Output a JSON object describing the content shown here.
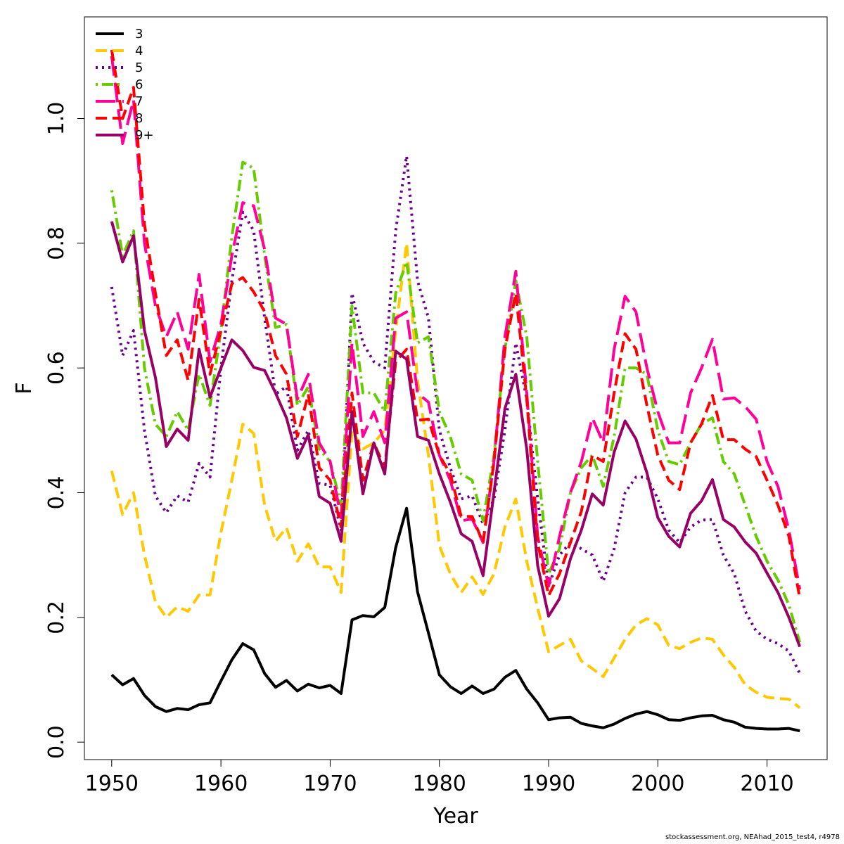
{
  "chart_data": {
    "type": "line",
    "title": "",
    "xlabel": "Year",
    "ylabel": "F",
    "xlim": [
      1947.5,
      2015.5
    ],
    "ylim": [
      -0.028,
      1.163
    ],
    "x_ticks": [
      1950,
      1960,
      1970,
      1980,
      1990,
      2000,
      2010
    ],
    "y_ticks": [
      0.0,
      0.2,
      0.4,
      0.6,
      0.8,
      1.0
    ],
    "y_tick_labels": [
      "0.0",
      "0.2",
      "0.4",
      "0.6",
      "0.8",
      "1.0"
    ],
    "grid": false,
    "legend_position": "top-left",
    "x": [
      1950,
      1951,
      1952,
      1953,
      1954,
      1955,
      1956,
      1957,
      1958,
      1959,
      1960,
      1961,
      1962,
      1963,
      1964,
      1965,
      1966,
      1967,
      1968,
      1969,
      1970,
      1971,
      1972,
      1973,
      1974,
      1975,
      1976,
      1977,
      1978,
      1979,
      1980,
      1981,
      1982,
      1983,
      1984,
      1985,
      1986,
      1987,
      1988,
      1989,
      1990,
      1991,
      1992,
      1993,
      1994,
      1995,
      1996,
      1997,
      1998,
      1999,
      2000,
      2001,
      2002,
      2003,
      2004,
      2005,
      2006,
      2007,
      2008,
      2009,
      2010,
      2011,
      2012,
      2013
    ],
    "series": [
      {
        "name": "3",
        "color": "#000000",
        "dash": "solid",
        "values": [
          0.108,
          0.092,
          0.102,
          0.075,
          0.057,
          0.049,
          0.054,
          0.052,
          0.06,
          0.063,
          0.098,
          0.132,
          0.158,
          0.148,
          0.11,
          0.088,
          0.099,
          0.082,
          0.093,
          0.087,
          0.091,
          0.078,
          0.196,
          0.203,
          0.201,
          0.216,
          0.312,
          0.375,
          0.241,
          0.175,
          0.108,
          0.089,
          0.078,
          0.09,
          0.078,
          0.085,
          0.104,
          0.115,
          0.085,
          0.063,
          0.036,
          0.039,
          0.04,
          0.03,
          0.026,
          0.023,
          0.029,
          0.038,
          0.045,
          0.049,
          0.044,
          0.036,
          0.035,
          0.039,
          0.042,
          0.043,
          0.036,
          0.032,
          0.024,
          0.022,
          0.021,
          0.021,
          0.022,
          0.018
        ]
      },
      {
        "name": "4",
        "color": "#ffc800",
        "dash": "dashed",
        "values": [
          0.435,
          0.365,
          0.4,
          0.3,
          0.225,
          0.2,
          0.217,
          0.21,
          0.236,
          0.236,
          0.336,
          0.42,
          0.51,
          0.495,
          0.38,
          0.322,
          0.344,
          0.29,
          0.318,
          0.281,
          0.281,
          0.24,
          0.5,
          0.47,
          0.48,
          0.5,
          0.66,
          0.8,
          0.58,
          0.46,
          0.315,
          0.27,
          0.24,
          0.265,
          0.237,
          0.27,
          0.345,
          0.39,
          0.29,
          0.215,
          0.145,
          0.155,
          0.165,
          0.13,
          0.118,
          0.105,
          0.135,
          0.165,
          0.188,
          0.198,
          0.188,
          0.155,
          0.15,
          0.16,
          0.167,
          0.165,
          0.14,
          0.12,
          0.092,
          0.08,
          0.072,
          0.07,
          0.069,
          0.055
        ]
      },
      {
        "name": "5",
        "color": "#6a0090",
        "dash": "dotted",
        "values": [
          0.73,
          0.62,
          0.66,
          0.5,
          0.395,
          0.368,
          0.395,
          0.385,
          0.447,
          0.425,
          0.6,
          0.74,
          0.85,
          0.82,
          0.68,
          0.558,
          0.57,
          0.468,
          0.5,
          0.415,
          0.412,
          0.34,
          0.72,
          0.64,
          0.61,
          0.6,
          0.82,
          0.94,
          0.74,
          0.68,
          0.5,
          0.44,
          0.39,
          0.395,
          0.35,
          0.39,
          0.5,
          0.64,
          0.55,
          0.39,
          0.25,
          0.3,
          0.32,
          0.31,
          0.3,
          0.258,
          0.31,
          0.4,
          0.425,
          0.425,
          0.39,
          0.34,
          0.32,
          0.345,
          0.356,
          0.357,
          0.3,
          0.27,
          0.21,
          0.178,
          0.165,
          0.158,
          0.146,
          0.11
        ]
      },
      {
        "name": "6",
        "color": "#66cc00",
        "dash": "dashdot",
        "values": [
          0.885,
          0.78,
          0.82,
          0.6,
          0.51,
          0.49,
          0.53,
          0.5,
          0.59,
          0.54,
          0.66,
          0.81,
          0.93,
          0.92,
          0.78,
          0.665,
          0.67,
          0.54,
          0.57,
          0.47,
          0.45,
          0.38,
          0.7,
          0.56,
          0.56,
          0.53,
          0.72,
          0.77,
          0.64,
          0.65,
          0.53,
          0.49,
          0.43,
          0.42,
          0.355,
          0.46,
          0.63,
          0.74,
          0.65,
          0.45,
          0.27,
          0.31,
          0.4,
          0.44,
          0.46,
          0.41,
          0.49,
          0.6,
          0.6,
          0.59,
          0.5,
          0.45,
          0.445,
          0.48,
          0.51,
          0.52,
          0.45,
          0.43,
          0.38,
          0.33,
          0.29,
          0.26,
          0.22,
          0.16
        ]
      },
      {
        "name": "7",
        "color": "#ff0099",
        "dash": "longdash",
        "values": [
          1.1,
          0.96,
          1.03,
          0.8,
          0.7,
          0.65,
          0.69,
          0.63,
          0.75,
          0.61,
          0.67,
          0.78,
          0.865,
          0.86,
          0.79,
          0.68,
          0.67,
          0.55,
          0.59,
          0.48,
          0.45,
          0.36,
          0.64,
          0.49,
          0.53,
          0.48,
          0.68,
          0.69,
          0.56,
          0.545,
          0.46,
          0.42,
          0.355,
          0.358,
          0.32,
          0.45,
          0.65,
          0.755,
          0.56,
          0.33,
          0.25,
          0.33,
          0.4,
          0.45,
          0.52,
          0.48,
          0.63,
          0.715,
          0.69,
          0.6,
          0.53,
          0.48,
          0.48,
          0.56,
          0.6,
          0.646,
          0.55,
          0.552,
          0.538,
          0.518,
          0.45,
          0.41,
          0.34,
          0.245
        ]
      },
      {
        "name": "8",
        "color": "#ff0000",
        "dash": "dashed",
        "values": [
          1.11,
          1.0,
          1.05,
          0.83,
          0.72,
          0.62,
          0.645,
          0.58,
          0.71,
          0.59,
          0.66,
          0.735,
          0.745,
          0.722,
          0.69,
          0.62,
          0.59,
          0.49,
          0.558,
          0.44,
          0.42,
          0.345,
          0.56,
          0.42,
          0.48,
          0.44,
          0.61,
          0.63,
          0.516,
          0.518,
          0.46,
          0.43,
          0.362,
          0.362,
          0.32,
          0.45,
          0.63,
          0.72,
          0.55,
          0.32,
          0.235,
          0.27,
          0.32,
          0.37,
          0.46,
          0.45,
          0.56,
          0.655,
          0.63,
          0.54,
          0.46,
          0.42,
          0.405,
          0.48,
          0.51,
          0.556,
          0.485,
          0.485,
          0.47,
          0.458,
          0.42,
          0.38,
          0.33,
          0.23
        ]
      },
      {
        "name": "9+",
        "color": "#990066",
        "dash": "solid",
        "values": [
          0.835,
          0.77,
          0.812,
          0.66,
          0.585,
          0.474,
          0.502,
          0.484,
          0.63,
          0.553,
          0.6,
          0.645,
          0.628,
          0.601,
          0.596,
          0.56,
          0.52,
          0.455,
          0.493,
          0.394,
          0.383,
          0.322,
          0.53,
          0.398,
          0.48,
          0.43,
          0.627,
          0.614,
          0.49,
          0.484,
          0.43,
          0.385,
          0.334,
          0.322,
          0.267,
          0.4,
          0.535,
          0.59,
          0.47,
          0.283,
          0.202,
          0.23,
          0.294,
          0.34,
          0.398,
          0.38,
          0.465,
          0.515,
          0.486,
          0.432,
          0.36,
          0.33,
          0.313,
          0.367,
          0.387,
          0.421,
          0.357,
          0.345,
          0.321,
          0.303,
          0.271,
          0.24,
          0.2,
          0.153
        ]
      }
    ]
  },
  "footer": "stockassessment.org, NEAhad_2015_test4, r4978"
}
